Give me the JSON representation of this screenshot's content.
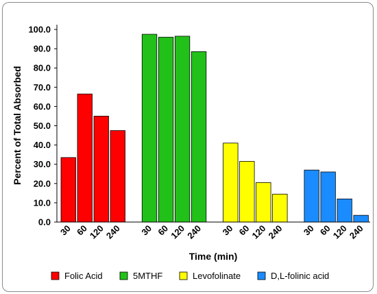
{
  "chart_data": {
    "type": "bar",
    "xlabel": "Time (min)",
    "ylabel": "Percent of Total Absorbed",
    "ylim": [
      0,
      100
    ],
    "yticks": [
      "0.0",
      "10.0",
      "20.0",
      "30.0",
      "40.0",
      "50.0",
      "60.0",
      "70.0",
      "80.0",
      "90.0",
      "100.0"
    ],
    "categories": [
      "30",
      "60",
      "120",
      "240"
    ],
    "grid": false,
    "legend_position": "bottom",
    "series": [
      {
        "name": "Folic Acid",
        "color": "#ff0000",
        "values": [
          33.5,
          66.5,
          55.0,
          47.5
        ]
      },
      {
        "name": "5MTHF",
        "color": "#22c11a",
        "values": [
          97.5,
          96.0,
          96.5,
          88.5
        ]
      },
      {
        "name": "Levofolinate",
        "color": "#ffff00",
        "values": [
          41.0,
          31.5,
          20.5,
          14.5
        ]
      },
      {
        "name": "D,L-folinic acid",
        "color": "#1a8cff",
        "values": [
          27.0,
          26.0,
          12.0,
          3.5
        ]
      }
    ]
  }
}
